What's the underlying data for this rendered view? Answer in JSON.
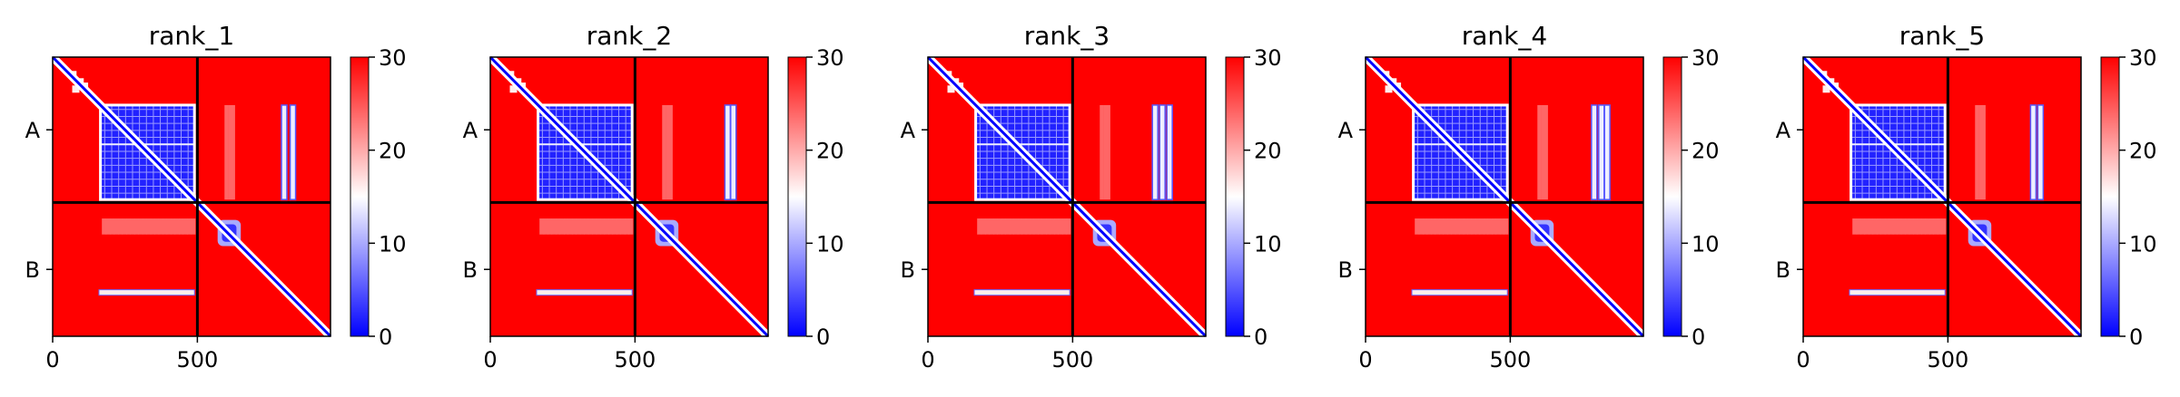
{
  "chart_data": [
    {
      "type": "heatmap",
      "title": "rank_1",
      "chains": [
        "A",
        "B"
      ],
      "x_range": [
        0,
        960
      ],
      "x_ticks": [
        0,
        500
      ],
      "chain_boundary": 500,
      "colorbar": {
        "min": 0,
        "max": 30,
        "ticks": [
          0,
          10,
          20,
          30
        ],
        "colormap": [
          "#0000ff",
          "#ffffff",
          "#ff0000"
        ]
      },
      "interchain_bands": [
        800,
        830
      ]
    },
    {
      "type": "heatmap",
      "title": "rank_2",
      "chains": [
        "A",
        "B"
      ],
      "x_range": [
        0,
        960
      ],
      "x_ticks": [
        0,
        500
      ],
      "chain_boundary": 500,
      "colorbar": {
        "min": 0,
        "max": 30,
        "ticks": [
          0,
          10,
          20,
          30
        ],
        "colormap": [
          "#0000ff",
          "#ffffff",
          "#ff0000"
        ]
      },
      "interchain_bands": [
        820,
        840
      ]
    },
    {
      "type": "heatmap",
      "title": "rank_3",
      "chains": [
        "A",
        "B"
      ],
      "x_range": [
        0,
        960
      ],
      "x_ticks": [
        0,
        500
      ],
      "chain_boundary": 500,
      "colorbar": {
        "min": 0,
        "max": 30,
        "ticks": [
          0,
          10,
          20,
          30
        ],
        "colormap": [
          "#0000ff",
          "#ffffff",
          "#ff0000"
        ]
      },
      "interchain_bands": [
        785,
        810,
        835
      ]
    },
    {
      "type": "heatmap",
      "title": "rank_4",
      "chains": [
        "A",
        "B"
      ],
      "x_range": [
        0,
        960
      ],
      "x_ticks": [
        0,
        500
      ],
      "chain_boundary": 500,
      "colorbar": {
        "min": 0,
        "max": 30,
        "ticks": [
          0,
          10,
          20,
          30
        ],
        "colormap": [
          "#0000ff",
          "#ffffff",
          "#ff0000"
        ]
      },
      "interchain_bands": [
        790,
        815,
        835
      ]
    },
    {
      "type": "heatmap",
      "title": "rank_5",
      "chains": [
        "A",
        "B"
      ],
      "x_range": [
        0,
        960
      ],
      "x_ticks": [
        0,
        500
      ],
      "chain_boundary": 500,
      "colorbar": {
        "min": 0,
        "max": 30,
        "ticks": [
          0,
          10,
          20,
          30
        ],
        "colormap": [
          "#0000ff",
          "#ffffff",
          "#ff0000"
        ]
      },
      "interchain_bands": [
        795,
        820
      ]
    }
  ]
}
